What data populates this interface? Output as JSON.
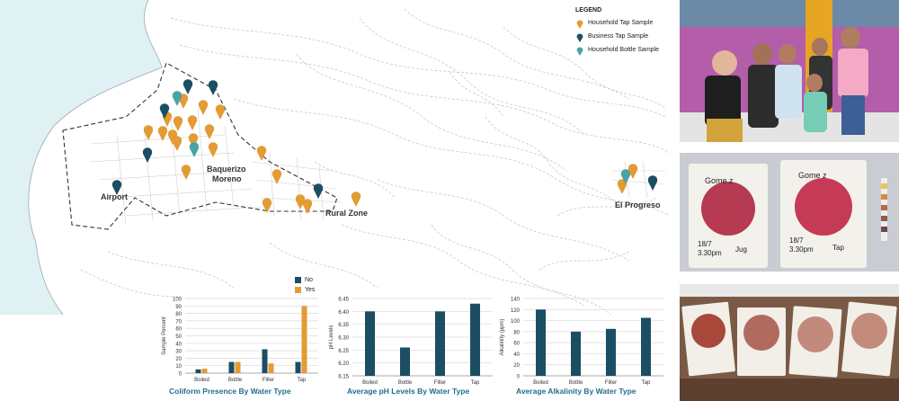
{
  "legend": {
    "title": "LEGEND",
    "items": [
      {
        "label": "Household Tap Sample",
        "color": "#e39b34",
        "icon": "map-pin-icon"
      },
      {
        "label": "Business Tap Sample",
        "color": "#1b4e63",
        "icon": "map-pin-icon"
      },
      {
        "label": "Household Bottle Sample",
        "color": "#4ba3a3",
        "icon": "map-pin-icon"
      }
    ]
  },
  "places": {
    "airport": "Airport",
    "town_line1": "Baquerizo",
    "town_line2": "Moreno",
    "rural": "Rural Zone",
    "progreso": "El Progreso"
  },
  "colors": {
    "no": "#1b4e63",
    "yes": "#e39b34",
    "sea": "#dff1f3",
    "title": "#1f6f8b"
  },
  "chart_data": [
    {
      "type": "bar",
      "title": "Coliform Presence By Water Type",
      "ylabel": "Sample Percent",
      "categories": [
        "Boiled",
        "Bottle",
        "Filter",
        "Tap"
      ],
      "series": [
        {
          "name": "No",
          "values": [
            5,
            15,
            32,
            15
          ]
        },
        {
          "name": "Yes",
          "values": [
            6,
            15,
            13,
            90
          ]
        }
      ],
      "ylim": [
        0,
        100
      ],
      "yticks": [
        0,
        10,
        20,
        30,
        40,
        50,
        60,
        70,
        80,
        90,
        100
      ],
      "grid": true,
      "legend": "top-right"
    },
    {
      "type": "bar",
      "title": "Average pH Levels By Water Type",
      "ylabel": "pH Levels",
      "categories": [
        "Boiled",
        "Bottle",
        "Filter",
        "Tap"
      ],
      "values": [
        6.4,
        6.26,
        6.4,
        6.43
      ],
      "ylim": [
        6.15,
        6.45
      ],
      "yticks": [
        6.15,
        6.2,
        6.25,
        6.3,
        6.35,
        6.4,
        6.45
      ],
      "grid": true
    },
    {
      "type": "bar",
      "title": "Average Alkalinity By Water Type",
      "ylabel": "Alkalinity (ppm)",
      "categories": [
        "Boiled",
        "Bottle",
        "Filter",
        "Tap"
      ],
      "values": [
        120,
        80,
        85,
        105
      ],
      "ylim": [
        0,
        140
      ],
      "yticks": [
        0,
        20,
        40,
        60,
        80,
        100,
        120,
        140
      ],
      "grid": true
    }
  ],
  "photos": {
    "plate1_name": "Gome z",
    "plate1_date": "18/7",
    "plate1_time": "3.30pm",
    "plate1_src": "Jug",
    "plate2_name": "Gome z",
    "plate2_date": "18/7",
    "plate2_time": "3.30pm",
    "plate2_src": "Tap"
  }
}
